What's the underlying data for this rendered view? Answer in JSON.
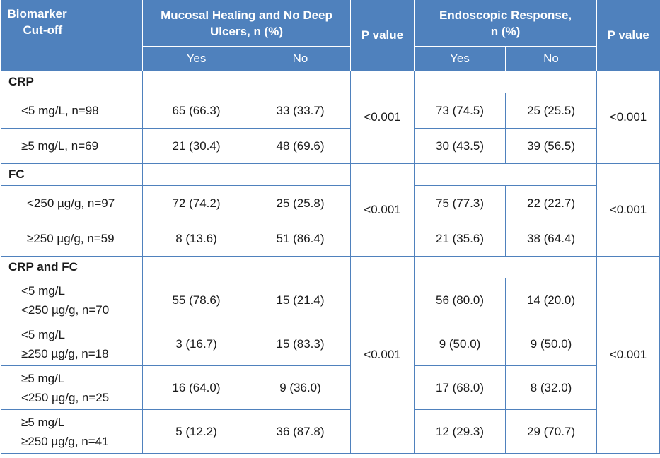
{
  "header": {
    "biomarker_line1": "Biomarker",
    "biomarker_line2": "Cut-off",
    "mh_line1": "Mucosal Healing and No Deep",
    "mh_line2": "Ulcers, n (%)",
    "pvalue1": "P value",
    "er_line1": "Endoscopic Response,",
    "er_line2": "n (%)",
    "pvalue2": "P value",
    "mh_yes": "Yes",
    "mh_no": "No",
    "er_yes": "Yes",
    "er_no": "No"
  },
  "groups": {
    "crp": {
      "label": "CRP",
      "p1": "<0.001",
      "p2": "<0.001",
      "rows": [
        {
          "line1": "<5 mg/L, n=98",
          "mh_yes": "65 (66.3)",
          "mh_no": "33 (33.7)",
          "er_yes": "73 (74.5)",
          "er_no": "25 (25.5)"
        },
        {
          "line1": "≥5 mg/L, n=69",
          "mh_yes": "21 (30.4)",
          "mh_no": "48 (69.6)",
          "er_yes": "30 (43.5)",
          "er_no": "39 (56.5)"
        }
      ]
    },
    "fc": {
      "label": "FC",
      "p1": "<0.001",
      "p2": "<0.001",
      "rows": [
        {
          "line1": "<250 µg/g, n=97",
          "mh_yes": "72 (74.2)",
          "mh_no": "25 (25.8)",
          "er_yes": "75 (77.3)",
          "er_no": "22 (22.7)"
        },
        {
          "line1": "≥250 µg/g, n=59",
          "mh_yes": "8 (13.6)",
          "mh_no": "51 (86.4)",
          "er_yes": "21 (35.6)",
          "er_no": "38 (64.4)"
        }
      ]
    },
    "crpfc": {
      "label": "CRP and FC",
      "p1": "<0.001",
      "p2": "<0.001",
      "rows": [
        {
          "line1": "<5 mg/L",
          "line2": "<250 µg/g, n=70",
          "mh_yes": "55 (78.6)",
          "mh_no": "15 (21.4)",
          "er_yes": "56 (80.0)",
          "er_no": "14 (20.0)"
        },
        {
          "line1": "<5 mg/L",
          "line2": "≥250 µg/g, n=18",
          "mh_yes": "3 (16.7)",
          "mh_no": "15 (83.3)",
          "er_yes": "9 (50.0)",
          "er_no": "9 (50.0)"
        },
        {
          "line1": "≥5 mg/L",
          "line2": "<250 µg/g, n=25",
          "mh_yes": "16 (64.0)",
          "mh_no": "9 (36.0)",
          "er_yes": "17 (68.0)",
          "er_no": "8 (32.0)"
        },
        {
          "line1": "≥5 mg/L",
          "line2": "≥250 µg/g, n=41",
          "mh_yes": "5 (12.2)",
          "mh_no": "36 (87.8)",
          "er_yes": "12 (29.3)",
          "er_no": "29 (70.7)"
        }
      ]
    }
  }
}
